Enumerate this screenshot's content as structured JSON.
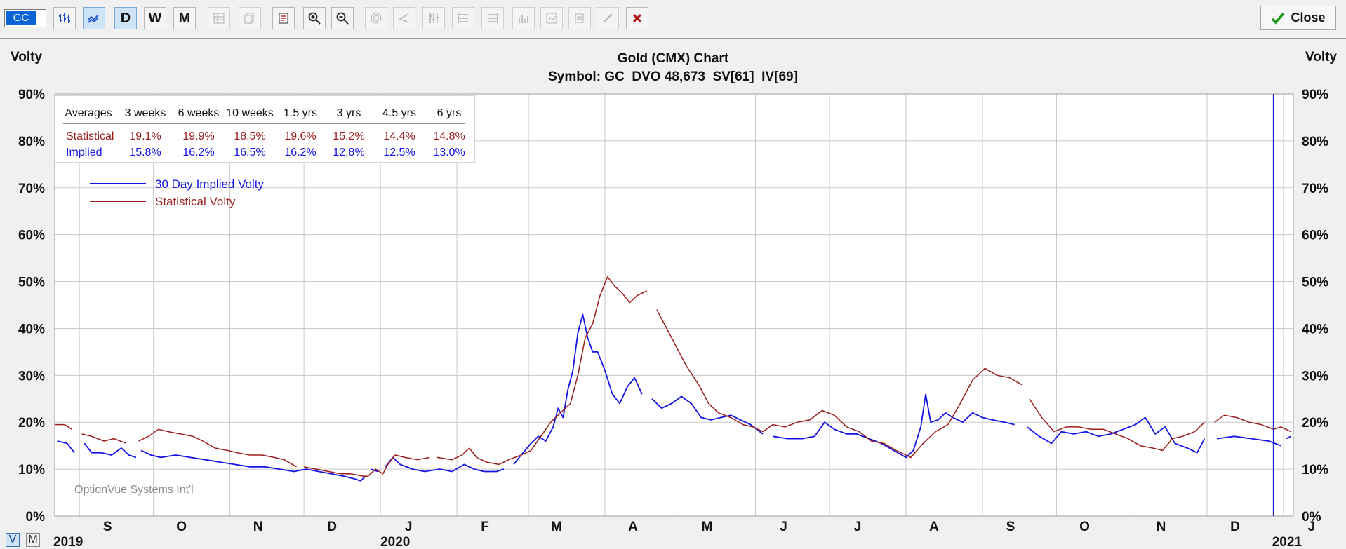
{
  "toolbar": {
    "symbol": "GC",
    "period_buttons": [
      "D",
      "W",
      "M"
    ],
    "close_label": "Close"
  },
  "chart_data": {
    "type": "line",
    "title": "Gold (CMX) Chart",
    "subtitle": "Symbol: GC  DVO 48,673  SV[61]  IV[69]",
    "ylabel_left": "Volty",
    "ylabel_right": "Volty",
    "ylim": [
      0,
      90
    ],
    "y_ticks": [
      "0%",
      "10%",
      "20%",
      "30%",
      "40%",
      "50%",
      "60%",
      "70%",
      "80%",
      "90%"
    ],
    "x_range": [
      "2019-08-22",
      "2021-01-05"
    ],
    "month_labels": [
      {
        "label": "S",
        "date": "2019-09-01"
      },
      {
        "label": "O",
        "date": "2019-10-01"
      },
      {
        "label": "N",
        "date": "2019-11-01"
      },
      {
        "label": "D",
        "date": "2019-12-01"
      },
      {
        "label": "J",
        "date": "2020-01-01"
      },
      {
        "label": "F",
        "date": "2020-02-01"
      },
      {
        "label": "M",
        "date": "2020-03-01"
      },
      {
        "label": "A",
        "date": "2020-04-01"
      },
      {
        "label": "M",
        "date": "2020-05-01"
      },
      {
        "label": "J",
        "date": "2020-06-01"
      },
      {
        "label": "J",
        "date": "2020-07-01"
      },
      {
        "label": "A",
        "date": "2020-08-01"
      },
      {
        "label": "S",
        "date": "2020-09-01"
      },
      {
        "label": "O",
        "date": "2020-10-01"
      },
      {
        "label": "N",
        "date": "2020-11-01"
      },
      {
        "label": "D",
        "date": "2020-12-01"
      },
      {
        "label": "J",
        "date": "2021-01-01"
      }
    ],
    "year_labels": [
      {
        "label": "2019",
        "date": "2019-08-22"
      },
      {
        "label": "2020",
        "date": "2020-01-01"
      },
      {
        "label": "2021",
        "date": "2021-01-01"
      }
    ],
    "current_date_marker": "2020-12-28",
    "grid": true,
    "legend_placement": "top-left",
    "watermark": "OptionVue Systems Int'l",
    "averages_table": {
      "headers": [
        "Averages",
        "3 weeks",
        "6 weeks",
        "10 weeks",
        "1.5 yrs",
        "3 yrs",
        "4.5 yrs",
        "6 yrs"
      ],
      "rows": [
        {
          "label": "Statistical",
          "values": [
            "19.1%",
            "19.9%",
            "18.5%",
            "19.6%",
            "15.2%",
            "14.4%",
            "14.8%"
          ]
        },
        {
          "label": "Implied",
          "values": [
            "15.8%",
            "16.2%",
            "16.5%",
            "16.2%",
            "12.8%",
            "12.5%",
            "13.0%"
          ]
        }
      ]
    },
    "series": [
      {
        "name": "30 Day Implied Volty",
        "color": "#1414e6",
        "points": [
          [
            "2019-08-23",
            16
          ],
          [
            "2019-08-27",
            15.5
          ],
          [
            "2019-08-30",
            13.5
          ],
          null,
          [
            "2019-09-03",
            15.5
          ],
          [
            "2019-09-06",
            13.5
          ],
          [
            "2019-09-10",
            13.5
          ],
          [
            "2019-09-14",
            13
          ],
          [
            "2019-09-18",
            14.5
          ],
          [
            "2019-09-21",
            13
          ],
          [
            "2019-09-24",
            12.5
          ],
          null,
          [
            "2019-09-26",
            14
          ],
          [
            "2019-09-30",
            13
          ],
          [
            "2019-10-04",
            12.5
          ],
          [
            "2019-10-10",
            13
          ],
          [
            "2019-10-16",
            12.5
          ],
          [
            "2019-10-22",
            12
          ],
          [
            "2019-10-28",
            11.5
          ],
          [
            "2019-11-03",
            11
          ],
          [
            "2019-11-09",
            10.5
          ],
          [
            "2019-11-15",
            10.5
          ],
          [
            "2019-11-21",
            10
          ],
          [
            "2019-11-27",
            9.5
          ],
          [
            "2019-12-02",
            10
          ],
          [
            "2019-12-07",
            9.5
          ],
          [
            "2019-12-12",
            9
          ],
          [
            "2019-12-17",
            8.5
          ],
          [
            "2019-12-21",
            8
          ],
          [
            "2019-12-24",
            7.5
          ],
          [
            "2019-12-26",
            8.5
          ],
          null,
          [
            "2019-12-28",
            10
          ],
          [
            "2019-12-31",
            9.5
          ],
          null,
          [
            "2020-01-03",
            10.5
          ],
          [
            "2020-01-06",
            12.5
          ],
          [
            "2020-01-09",
            11
          ],
          [
            "2020-01-14",
            10
          ],
          [
            "2020-01-19",
            9.5
          ],
          [
            "2020-01-25",
            10
          ],
          [
            "2020-01-30",
            9.5
          ],
          [
            "2020-02-04",
            11
          ],
          [
            "2020-02-08",
            10
          ],
          [
            "2020-02-12",
            9.5
          ],
          [
            "2020-02-17",
            9.5
          ],
          [
            "2020-02-20",
            10
          ],
          null,
          [
            "2020-02-24",
            11
          ],
          [
            "2020-02-27",
            13
          ],
          [
            "2020-03-02",
            15.5
          ],
          [
            "2020-03-05",
            17
          ],
          [
            "2020-03-08",
            16
          ],
          [
            "2020-03-11",
            19
          ],
          [
            "2020-03-13",
            23
          ],
          [
            "2020-03-15",
            21
          ],
          [
            "2020-03-17",
            27
          ],
          [
            "2020-03-19",
            31
          ],
          [
            "2020-03-21",
            39
          ],
          [
            "2020-03-23",
            43
          ],
          [
            "2020-03-25",
            38
          ],
          [
            "2020-03-27",
            35
          ],
          [
            "2020-03-29",
            35
          ],
          [
            "2020-04-01",
            31
          ],
          [
            "2020-04-04",
            26
          ],
          [
            "2020-04-07",
            24
          ],
          [
            "2020-04-10",
            27.5
          ],
          [
            "2020-04-13",
            29.5
          ],
          [
            "2020-04-16",
            26
          ],
          null,
          [
            "2020-04-20",
            25
          ],
          [
            "2020-04-24",
            23
          ],
          [
            "2020-04-28",
            24
          ],
          [
            "2020-05-02",
            25.5
          ],
          [
            "2020-05-06",
            24
          ],
          [
            "2020-05-10",
            21
          ],
          [
            "2020-05-14",
            20.5
          ],
          [
            "2020-05-18",
            21
          ],
          [
            "2020-05-22",
            21.5
          ],
          [
            "2020-05-26",
            20.5
          ],
          [
            "2020-05-30",
            19.5
          ],
          [
            "2020-06-04",
            17.5
          ],
          null,
          [
            "2020-06-08",
            17
          ],
          [
            "2020-06-14",
            16.5
          ],
          [
            "2020-06-20",
            16.5
          ],
          [
            "2020-06-25",
            17
          ],
          [
            "2020-06-29",
            20
          ],
          [
            "2020-07-03",
            18.5
          ],
          [
            "2020-07-08",
            17.5
          ],
          [
            "2020-07-12",
            17.5
          ],
          [
            "2020-07-17",
            16.5
          ],
          [
            "2020-07-22",
            15.5
          ],
          [
            "2020-07-27",
            14
          ],
          [
            "2020-08-01",
            12.5
          ],
          [
            "2020-08-04",
            14
          ],
          [
            "2020-08-07",
            19
          ],
          [
            "2020-08-09",
            26
          ],
          [
            "2020-08-11",
            20
          ],
          [
            "2020-08-14",
            20.5
          ],
          [
            "2020-08-17",
            22
          ],
          [
            "2020-08-20",
            21
          ],
          [
            "2020-08-24",
            20
          ],
          [
            "2020-08-28",
            22
          ],
          [
            "2020-09-01",
            21
          ],
          [
            "2020-09-05",
            20.5
          ],
          [
            "2020-09-10",
            20
          ],
          [
            "2020-09-14",
            19.5
          ],
          null,
          [
            "2020-09-19",
            19
          ],
          [
            "2020-09-24",
            17
          ],
          [
            "2020-09-29",
            15.5
          ],
          [
            "2020-10-03",
            18
          ],
          [
            "2020-10-08",
            17.5
          ],
          [
            "2020-10-13",
            18
          ],
          [
            "2020-10-18",
            17
          ],
          [
            "2020-10-23",
            17.5
          ],
          [
            "2020-10-28",
            18.5
          ],
          [
            "2020-11-02",
            19.5
          ],
          [
            "2020-11-06",
            21
          ],
          [
            "2020-11-10",
            17.5
          ],
          [
            "2020-11-14",
            19
          ],
          [
            "2020-11-18",
            15.5
          ],
          [
            "2020-11-23",
            14.5
          ],
          [
            "2020-11-27",
            13.5
          ],
          [
            "2020-11-30",
            16.5
          ],
          null,
          [
            "2020-12-05",
            16.5
          ],
          [
            "2020-12-12",
            17
          ],
          [
            "2020-12-19",
            16.5
          ],
          [
            "2020-12-26",
            16
          ],
          [
            "2020-12-31",
            15
          ],
          null,
          [
            "2021-01-02",
            16.5
          ],
          [
            "2021-01-04",
            17
          ]
        ]
      },
      {
        "name": "Statistical Volty",
        "color": "#9b1c1c",
        "points": [
          [
            "2019-08-22",
            19.5
          ],
          [
            "2019-08-26",
            19.5
          ],
          [
            "2019-08-29",
            18.5
          ],
          null,
          [
            "2019-09-02",
            17.5
          ],
          [
            "2019-09-06",
            17
          ],
          [
            "2019-09-11",
            16
          ],
          [
            "2019-09-15",
            16.5
          ],
          [
            "2019-09-20",
            15.5
          ],
          null,
          [
            "2019-09-25",
            16
          ],
          [
            "2019-09-29",
            17
          ],
          [
            "2019-10-03",
            18.5
          ],
          [
            "2019-10-07",
            18
          ],
          [
            "2019-10-12",
            17.5
          ],
          [
            "2019-10-17",
            17
          ],
          [
            "2019-10-21",
            16
          ],
          [
            "2019-10-26",
            14.5
          ],
          [
            "2019-10-31",
            14
          ],
          [
            "2019-11-04",
            13.5
          ],
          [
            "2019-11-09",
            13
          ],
          [
            "2019-11-14",
            13
          ],
          [
            "2019-11-19",
            12.5
          ],
          [
            "2019-11-23",
            12
          ],
          [
            "2019-11-28",
            10.5
          ],
          null,
          [
            "2019-12-01",
            10.5
          ],
          [
            "2019-12-06",
            10
          ],
          [
            "2019-12-11",
            9.5
          ],
          [
            "2019-12-16",
            9
          ],
          [
            "2019-12-20",
            9
          ],
          [
            "2019-12-25",
            8.5
          ],
          [
            "2019-12-27",
            8.5
          ],
          [
            "2019-12-30",
            10
          ],
          [
            "2020-01-02",
            9
          ],
          [
            "2020-01-04",
            11
          ],
          [
            "2020-01-07",
            13
          ],
          [
            "2020-01-11",
            12.5
          ],
          [
            "2020-01-16",
            12
          ],
          [
            "2020-01-21",
            12.5
          ],
          null,
          [
            "2020-01-24",
            12.5
          ],
          [
            "2020-01-30",
            12
          ],
          [
            "2020-02-03",
            13
          ],
          [
            "2020-02-06",
            14.5
          ],
          [
            "2020-02-09",
            12.5
          ],
          [
            "2020-02-13",
            11.5
          ],
          [
            "2020-02-18",
            11
          ],
          [
            "2020-02-22",
            12
          ],
          [
            "2020-02-27",
            13
          ],
          [
            "2020-03-02",
            14
          ],
          [
            "2020-03-06",
            17
          ],
          [
            "2020-03-10",
            20
          ],
          [
            "2020-03-14",
            22
          ],
          [
            "2020-03-18",
            24
          ],
          [
            "2020-03-21",
            30
          ],
          [
            "2020-03-24",
            38
          ],
          [
            "2020-03-27",
            41
          ],
          [
            "2020-03-30",
            47
          ],
          [
            "2020-04-02",
            51
          ],
          [
            "2020-04-05",
            49
          ],
          [
            "2020-04-08",
            47.5
          ],
          [
            "2020-04-11",
            45.5
          ],
          [
            "2020-04-14",
            47
          ],
          [
            "2020-04-18",
            48
          ],
          null,
          [
            "2020-04-22",
            44
          ],
          [
            "2020-04-26",
            40
          ],
          [
            "2020-04-30",
            36
          ],
          [
            "2020-05-04",
            32
          ],
          [
            "2020-05-09",
            28
          ],
          [
            "2020-05-13",
            24
          ],
          [
            "2020-05-17",
            22
          ],
          [
            "2020-05-22",
            21
          ],
          [
            "2020-05-27",
            19.5
          ],
          [
            "2020-05-31",
            19
          ],
          [
            "2020-06-04",
            18
          ],
          [
            "2020-06-08",
            19.5
          ],
          [
            "2020-06-13",
            19
          ],
          [
            "2020-06-18",
            20
          ],
          [
            "2020-06-23",
            20.5
          ],
          [
            "2020-06-28",
            22.5
          ],
          [
            "2020-07-03",
            21.5
          ],
          [
            "2020-07-08",
            19
          ],
          [
            "2020-07-13",
            18
          ],
          [
            "2020-07-18",
            16
          ],
          [
            "2020-07-23",
            15.5
          ],
          [
            "2020-07-28",
            14
          ],
          [
            "2020-08-03",
            12.5
          ],
          [
            "2020-08-08",
            15.5
          ],
          [
            "2020-08-13",
            18
          ],
          [
            "2020-08-18",
            19.5
          ],
          [
            "2020-08-23",
            24
          ],
          [
            "2020-08-28",
            29
          ],
          [
            "2020-09-02",
            31.5
          ],
          [
            "2020-09-07",
            30
          ],
          [
            "2020-09-12",
            29.5
          ],
          [
            "2020-09-17",
            28
          ],
          null,
          [
            "2020-09-20",
            25
          ],
          [
            "2020-09-25",
            21
          ],
          [
            "2020-09-30",
            18
          ],
          [
            "2020-10-05",
            19
          ],
          [
            "2020-10-10",
            19
          ],
          [
            "2020-10-15",
            18.5
          ],
          [
            "2020-10-20",
            18.5
          ],
          [
            "2020-10-25",
            17.5
          ],
          [
            "2020-10-30",
            16.5
          ],
          [
            "2020-11-04",
            15
          ],
          [
            "2020-11-09",
            14.5
          ],
          [
            "2020-11-13",
            14
          ],
          [
            "2020-11-17",
            16.5
          ],
          [
            "2020-11-21",
            17
          ],
          [
            "2020-11-26",
            18
          ],
          [
            "2020-11-30",
            20
          ],
          null,
          [
            "2020-12-04",
            20
          ],
          [
            "2020-12-08",
            21.5
          ],
          [
            "2020-12-13",
            21
          ],
          [
            "2020-12-18",
            20
          ],
          [
            "2020-12-23",
            19.5
          ],
          [
            "2020-12-28",
            18.5
          ],
          [
            "2020-12-31",
            19
          ],
          [
            "2021-01-04",
            18
          ]
        ]
      }
    ]
  },
  "view_tabs": [
    "V",
    "M"
  ]
}
